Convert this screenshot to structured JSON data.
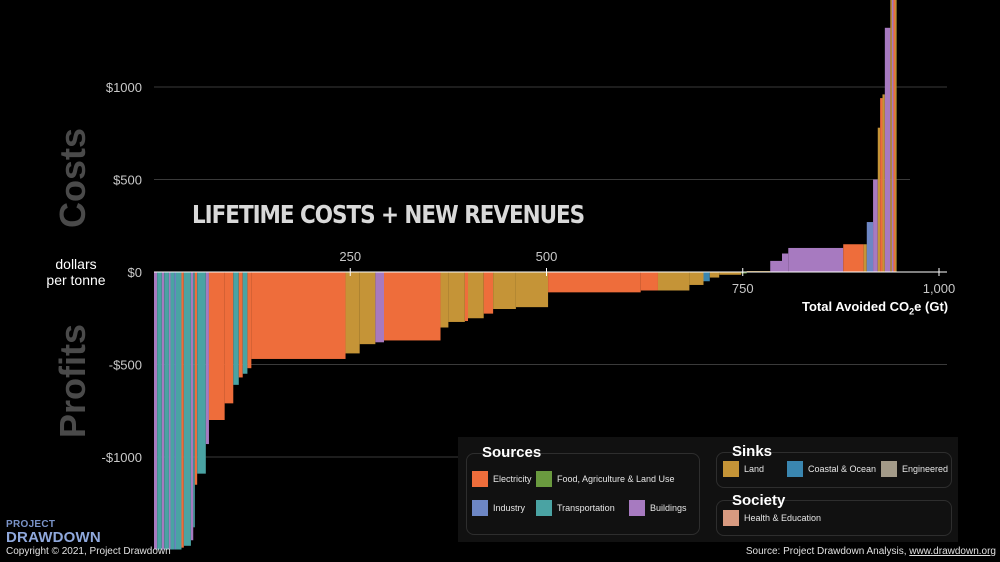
{
  "chart_data": {
    "type": "bar",
    "subtype": "marginal-abatement-cost-curve",
    "title": "LIFETIME COSTS + NEW REVENUES",
    "xlabel": "Total Avoided CO2e (Gt)",
    "xlabel_main": "Total Avoided CO",
    "xlabel_sub": "2",
    "xlabel_tail": "e (Gt)",
    "ylabel": "dollars per tonne",
    "ylabel_line1": "dollars",
    "ylabel_line2": "per tonne",
    "ylabel_top": "Costs",
    "ylabel_bottom": "Profits",
    "xlim": [
      0,
      1000
    ],
    "ylim": [
      -1500,
      1000
    ],
    "x_ticks": [
      {
        "value": 250,
        "label": "250"
      },
      {
        "value": 500,
        "label": "500"
      },
      {
        "value": 750,
        "label": "750"
      },
      {
        "value": 1000,
        "label": "1,000"
      }
    ],
    "y_ticks": [
      {
        "value": 1000,
        "label": "$1000"
      },
      {
        "value": 500,
        "label": "$500"
      },
      {
        "value": 0,
        "label": "$0"
      },
      {
        "value": -500,
        "label": "-$500"
      },
      {
        "value": -1000,
        "label": "-$1000"
      }
    ],
    "grid": "horizontal",
    "legend_position": "bottom-right",
    "sector_colors": {
      "electricity": "#ee6d3b",
      "food": "#6a9a3f",
      "industry": "#6d86c4",
      "transportation": "#4aa3a3",
      "buildings": "#a77ac0",
      "land": "#c59437",
      "coastal": "#3a86b0",
      "engineered": "#a39a88",
      "health": "#d89a80"
    },
    "series": [
      {
        "key": "buildings",
        "x0": 0,
        "x1": 4,
        "value": -1500
      },
      {
        "key": "transportation",
        "x0": 4,
        "x1": 10,
        "value": -1500
      },
      {
        "key": "buildings",
        "x0": 10,
        "x1": 13,
        "value": -1500
      },
      {
        "key": "transportation",
        "x0": 13,
        "x1": 19,
        "value": -1500
      },
      {
        "key": "buildings",
        "x0": 19,
        "x1": 21,
        "value": -1500
      },
      {
        "key": "transportation",
        "x0": 21,
        "x1": 26,
        "value": -1500
      },
      {
        "key": "industry",
        "x0": 26,
        "x1": 28,
        "value": -1500
      },
      {
        "key": "transportation",
        "x0": 28,
        "x1": 35,
        "value": -1500
      },
      {
        "key": "electricity",
        "x0": 35,
        "x1": 38,
        "value": -1490
      },
      {
        "key": "transportation",
        "x0": 38,
        "x1": 47,
        "value": -1480
      },
      {
        "key": "buildings",
        "x0": 47,
        "x1": 50,
        "value": -1450
      },
      {
        "key": "transportation",
        "x0": 50,
        "x1": 52,
        "value": -1380
      },
      {
        "key": "electricity",
        "x0": 52,
        "x1": 55,
        "value": -1150
      },
      {
        "key": "transportation",
        "x0": 55,
        "x1": 66,
        "value": -1090
      },
      {
        "key": "buildings",
        "x0": 66,
        "x1": 70,
        "value": -930
      },
      {
        "key": "electricity",
        "x0": 70,
        "x1": 90,
        "value": -800
      },
      {
        "key": "electricity",
        "x0": 90,
        "x1": 101,
        "value": -710
      },
      {
        "key": "transportation",
        "x0": 101,
        "x1": 108,
        "value": -610
      },
      {
        "key": "electricity",
        "x0": 108,
        "x1": 113,
        "value": -570
      },
      {
        "key": "transportation",
        "x0": 113,
        "x1": 119,
        "value": -550
      },
      {
        "key": "electricity",
        "x0": 119,
        "x1": 124,
        "value": -520
      },
      {
        "key": "electricity",
        "x0": 124,
        "x1": 244,
        "value": -470
      },
      {
        "key": "land",
        "x0": 244,
        "x1": 262,
        "value": -440
      },
      {
        "key": "land",
        "x0": 262,
        "x1": 282,
        "value": -390
      },
      {
        "key": "buildings",
        "x0": 282,
        "x1": 293,
        "value": -380
      },
      {
        "key": "electricity",
        "x0": 293,
        "x1": 365,
        "value": -370
      },
      {
        "key": "land",
        "x0": 365,
        "x1": 375,
        "value": -300
      },
      {
        "key": "land",
        "x0": 375,
        "x1": 396,
        "value": -270
      },
      {
        "key": "electricity",
        "x0": 396,
        "x1": 400,
        "value": -265
      },
      {
        "key": "land",
        "x0": 400,
        "x1": 420,
        "value": -250
      },
      {
        "key": "electricity",
        "x0": 420,
        "x1": 432,
        "value": -225
      },
      {
        "key": "land",
        "x0": 432,
        "x1": 461,
        "value": -200
      },
      {
        "key": "land",
        "x0": 461,
        "x1": 502,
        "value": -190
      },
      {
        "key": "electricity",
        "x0": 502,
        "x1": 620,
        "value": -110
      },
      {
        "key": "electricity",
        "x0": 620,
        "x1": 642,
        "value": -100
      },
      {
        "key": "land",
        "x0": 642,
        "x1": 682,
        "value": -100
      },
      {
        "key": "land",
        "x0": 682,
        "x1": 700,
        "value": -70
      },
      {
        "key": "coastal",
        "x0": 700,
        "x1": 708,
        "value": -50
      },
      {
        "key": "land",
        "x0": 708,
        "x1": 720,
        "value": -30
      },
      {
        "key": "land",
        "x0": 720,
        "x1": 748,
        "value": -15
      },
      {
        "key": "food",
        "x0": 748,
        "x1": 755,
        "value": -8
      },
      {
        "key": "land",
        "x0": 755,
        "x1": 785,
        "value": 5
      },
      {
        "key": "buildings",
        "x0": 785,
        "x1": 800,
        "value": 60
      },
      {
        "key": "buildings",
        "x0": 800,
        "x1": 808,
        "value": 100
      },
      {
        "key": "buildings",
        "x0": 808,
        "x1": 878,
        "value": 130
      },
      {
        "key": "electricity",
        "x0": 878,
        "x1": 904,
        "value": 150
      },
      {
        "key": "land",
        "x0": 904,
        "x1": 908,
        "value": 150
      },
      {
        "key": "industry",
        "x0": 908,
        "x1": 916,
        "value": 270
      },
      {
        "key": "buildings",
        "x0": 916,
        "x1": 922,
        "value": 500
      },
      {
        "key": "land",
        "x0": 922,
        "x1": 925,
        "value": 780
      },
      {
        "key": "electricity",
        "x0": 925,
        "x1": 928,
        "value": 940
      },
      {
        "key": "land",
        "x0": 928,
        "x1": 931,
        "value": 960
      },
      {
        "key": "buildings",
        "x0": 931,
        "x1": 938,
        "value": 1320
      },
      {
        "key": "land",
        "x0": 938,
        "x1": 940,
        "value": 1500
      },
      {
        "key": "buildings",
        "x0": 940,
        "x1": 942,
        "value": 1500
      },
      {
        "key": "electricity",
        "x0": 942,
        "x1": 944,
        "value": 1500
      },
      {
        "key": "land",
        "x0": 944,
        "x1": 946,
        "value": 1500
      }
    ]
  },
  "legend": {
    "sources": {
      "heading": "Sources",
      "items": [
        {
          "key": "electricity",
          "label": "Electricity"
        },
        {
          "key": "food",
          "label": "Food, Agriculture & Land Use"
        },
        {
          "key": "industry",
          "label": "Industry"
        },
        {
          "key": "transportation",
          "label": "Transportation"
        },
        {
          "key": "buildings",
          "label": "Buildings"
        }
      ]
    },
    "sinks": {
      "heading": "Sinks",
      "items": [
        {
          "key": "land",
          "label": "Land"
        },
        {
          "key": "coastal",
          "label": "Coastal & Ocean"
        },
        {
          "key": "engineered",
          "label": "Engineered"
        }
      ]
    },
    "society": {
      "heading": "Society",
      "items": [
        {
          "key": "health",
          "label": "Health & Education"
        }
      ]
    }
  },
  "footer": {
    "logo_top": "PROJECT",
    "logo_bottom": "DRAWDOWN",
    "copyright": "Copyright © 2021, Project Drawdown",
    "source_prefix": "Source: Project Drawdown Analysis, ",
    "source_url": "www.drawdown.org"
  }
}
